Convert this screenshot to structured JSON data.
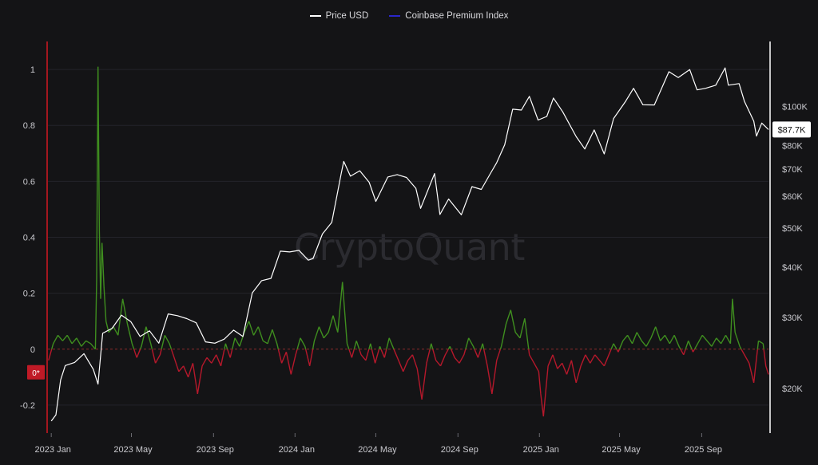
{
  "legend": {
    "items": [
      {
        "label": "Price USD",
        "color": "#ffffff"
      },
      {
        "label": "Coinbase Premium Index",
        "color": "#2a26c9"
      }
    ]
  },
  "watermark": "CryptoQuant",
  "price_badge": "$87.7K",
  "zero_badge": "0*",
  "colors": {
    "positive": "#3f8e1f",
    "negative": "#b5182b",
    "price": "#ffffff",
    "grid": "#23232a",
    "left_axis_line": "#a3171f",
    "right_axis_line": "#ffffff"
  },
  "chart_data": {
    "type": "line",
    "x_range": [
      "2022-12-27",
      "2025-12-10"
    ],
    "x_ticks": [
      {
        "date": "2023-01-01",
        "label": "2023 Jan"
      },
      {
        "date": "2023-05-01",
        "label": "2023 May"
      },
      {
        "date": "2023-09-01",
        "label": "2023 Sep"
      },
      {
        "date": "2024-01-01",
        "label": "2024 Jan"
      },
      {
        "date": "2024-05-01",
        "label": "2024 May"
      },
      {
        "date": "2024-09-01",
        "label": "2024 Sep"
      },
      {
        "date": "2025-01-01",
        "label": "2025 Jan"
      },
      {
        "date": "2025-05-01",
        "label": "2025 May"
      },
      {
        "date": "2025-09-01",
        "label": "2025 Sep"
      }
    ],
    "left_axis": {
      "ylim": [
        -0.3,
        1.1
      ],
      "ticks": [
        -0.2,
        0,
        0.2,
        0.4,
        0.6,
        0.8,
        1
      ],
      "tick_labels": [
        "-0.2",
        "0",
        "0.2",
        "0.4",
        "0.6",
        "0.8",
        "1"
      ]
    },
    "right_axis": {
      "scale": "log",
      "ylim": [
        15500,
        145000
      ],
      "ticks": [
        20000,
        30000,
        40000,
        50000,
        60000,
        70000,
        80000,
        100000
      ],
      "tick_labels": [
        "$20K",
        "$30K",
        "$40K",
        "$50K",
        "$60K",
        "$70K",
        "$80K",
        "$100K"
      ]
    },
    "series": [
      {
        "name": "Price USD",
        "axis": "right",
        "points": [
          [
            "2023-01-01",
            16600
          ],
          [
            "2023-01-08",
            17200
          ],
          [
            "2023-01-15",
            21000
          ],
          [
            "2023-01-22",
            22800
          ],
          [
            "2023-02-05",
            23200
          ],
          [
            "2023-02-19",
            24400
          ],
          [
            "2023-03-05",
            22300
          ],
          [
            "2023-03-12",
            20500
          ],
          [
            "2023-03-19",
            27400
          ],
          [
            "2023-04-02",
            28200
          ],
          [
            "2023-04-16",
            30400
          ],
          [
            "2023-04-30",
            29300
          ],
          [
            "2023-05-14",
            26900
          ],
          [
            "2023-05-28",
            27800
          ],
          [
            "2023-06-11",
            25900
          ],
          [
            "2023-06-25",
            30600
          ],
          [
            "2023-07-09",
            30300
          ],
          [
            "2023-07-23",
            29800
          ],
          [
            "2023-08-06",
            29100
          ],
          [
            "2023-08-20",
            26100
          ],
          [
            "2023-09-03",
            25900
          ],
          [
            "2023-09-17",
            26500
          ],
          [
            "2023-10-01",
            27900
          ],
          [
            "2023-10-15",
            26900
          ],
          [
            "2023-10-29",
            34500
          ],
          [
            "2023-11-12",
            37000
          ],
          [
            "2023-11-26",
            37500
          ],
          [
            "2023-12-10",
            43800
          ],
          [
            "2023-12-24",
            43600
          ],
          [
            "2024-01-07",
            44000
          ],
          [
            "2024-01-21",
            41600
          ],
          [
            "2024-01-28",
            42000
          ],
          [
            "2024-02-11",
            48300
          ],
          [
            "2024-02-25",
            51600
          ],
          [
            "2024-03-10",
            68000
          ],
          [
            "2024-03-14",
            73100
          ],
          [
            "2024-03-24",
            67200
          ],
          [
            "2024-04-07",
            69300
          ],
          [
            "2024-04-21",
            64900
          ],
          [
            "2024-05-01",
            58200
          ],
          [
            "2024-05-19",
            66900
          ],
          [
            "2024-06-02",
            67800
          ],
          [
            "2024-06-16",
            66700
          ],
          [
            "2024-06-30",
            62700
          ],
          [
            "2024-07-07",
            55900
          ],
          [
            "2024-07-28",
            68200
          ],
          [
            "2024-08-05",
            54000
          ],
          [
            "2024-08-18",
            59000
          ],
          [
            "2024-09-06",
            53900
          ],
          [
            "2024-09-22",
            63300
          ],
          [
            "2024-10-06",
            62300
          ],
          [
            "2024-10-20",
            68400
          ],
          [
            "2024-10-29",
            72600
          ],
          [
            "2024-11-10",
            80400
          ],
          [
            "2024-11-22",
            98500
          ],
          [
            "2024-12-05",
            98000
          ],
          [
            "2024-12-17",
            106000
          ],
          [
            "2024-12-30",
            92600
          ],
          [
            "2025-01-12",
            94500
          ],
          [
            "2025-01-22",
            105000
          ],
          [
            "2025-02-05",
            97000
          ],
          [
            "2025-02-25",
            84300
          ],
          [
            "2025-03-10",
            78500
          ],
          [
            "2025-03-24",
            87500
          ],
          [
            "2025-04-08",
            76300
          ],
          [
            "2025-04-22",
            93400
          ],
          [
            "2025-05-10",
            103000
          ],
          [
            "2025-05-22",
            111000
          ],
          [
            "2025-06-05",
            101000
          ],
          [
            "2025-06-22",
            100900
          ],
          [
            "2025-07-14",
            122000
          ],
          [
            "2025-07-28",
            118000
          ],
          [
            "2025-08-14",
            123500
          ],
          [
            "2025-08-25",
            110000
          ],
          [
            "2025-09-07",
            111000
          ],
          [
            "2025-09-22",
            113000
          ],
          [
            "2025-10-06",
            124700
          ],
          [
            "2025-10-11",
            113000
          ],
          [
            "2025-10-27",
            114000
          ],
          [
            "2025-11-04",
            103000
          ],
          [
            "2025-11-18",
            92000
          ],
          [
            "2025-11-22",
            84500
          ],
          [
            "2025-11-30",
            91000
          ],
          [
            "2025-12-06",
            89000
          ],
          [
            "2025-12-10",
            87700
          ]
        ]
      },
      {
        "name": "Coinbase Premium Index",
        "axis": "left",
        "points": [
          [
            "2022-12-28",
            -0.04
          ],
          [
            "2023-01-04",
            0.02
          ],
          [
            "2023-01-11",
            0.05
          ],
          [
            "2023-01-18",
            0.03
          ],
          [
            "2023-01-25",
            0.05
          ],
          [
            "2023-02-01",
            0.02
          ],
          [
            "2023-02-08",
            0.04
          ],
          [
            "2023-02-15",
            0.01
          ],
          [
            "2023-02-22",
            0.03
          ],
          [
            "2023-03-01",
            0.02
          ],
          [
            "2023-03-08",
            0.0
          ],
          [
            "2023-03-10",
            0.25
          ],
          [
            "2023-03-12",
            1.01
          ],
          [
            "2023-03-14",
            0.42
          ],
          [
            "2023-03-16",
            0.18
          ],
          [
            "2023-03-18",
            0.38
          ],
          [
            "2023-03-21",
            0.22
          ],
          [
            "2023-03-24",
            0.1
          ],
          [
            "2023-03-28",
            0.06
          ],
          [
            "2023-04-04",
            0.08
          ],
          [
            "2023-04-11",
            0.05
          ],
          [
            "2023-04-18",
            0.18
          ],
          [
            "2023-04-25",
            0.09
          ],
          [
            "2023-05-02",
            0.02
          ],
          [
            "2023-05-09",
            -0.03
          ],
          [
            "2023-05-16",
            0.01
          ],
          [
            "2023-05-23",
            0.08
          ],
          [
            "2023-05-30",
            0.02
          ],
          [
            "2023-06-06",
            -0.05
          ],
          [
            "2023-06-13",
            -0.02
          ],
          [
            "2023-06-20",
            0.05
          ],
          [
            "2023-06-27",
            0.02
          ],
          [
            "2023-07-04",
            -0.03
          ],
          [
            "2023-07-11",
            -0.08
          ],
          [
            "2023-07-18",
            -0.06
          ],
          [
            "2023-07-25",
            -0.1
          ],
          [
            "2023-08-01",
            -0.05
          ],
          [
            "2023-08-08",
            -0.16
          ],
          [
            "2023-08-15",
            -0.06
          ],
          [
            "2023-08-22",
            -0.03
          ],
          [
            "2023-08-29",
            -0.05
          ],
          [
            "2023-09-05",
            -0.02
          ],
          [
            "2023-09-12",
            -0.06
          ],
          [
            "2023-09-19",
            0.02
          ],
          [
            "2023-09-26",
            -0.03
          ],
          [
            "2023-10-03",
            0.04
          ],
          [
            "2023-10-10",
            0.01
          ],
          [
            "2023-10-17",
            0.06
          ],
          [
            "2023-10-24",
            0.1
          ],
          [
            "2023-10-31",
            0.05
          ],
          [
            "2023-11-07",
            0.08
          ],
          [
            "2023-11-14",
            0.03
          ],
          [
            "2023-11-21",
            0.02
          ],
          [
            "2023-11-28",
            0.07
          ],
          [
            "2023-12-05",
            0.02
          ],
          [
            "2023-12-12",
            -0.05
          ],
          [
            "2023-12-19",
            -0.01
          ],
          [
            "2023-12-26",
            -0.09
          ],
          [
            "2024-01-02",
            -0.02
          ],
          [
            "2024-01-09",
            0.04
          ],
          [
            "2024-01-16",
            0.01
          ],
          [
            "2024-01-23",
            -0.06
          ],
          [
            "2024-01-30",
            0.03
          ],
          [
            "2024-02-06",
            0.08
          ],
          [
            "2024-02-13",
            0.04
          ],
          [
            "2024-02-20",
            0.06
          ],
          [
            "2024-02-27",
            0.12
          ],
          [
            "2024-03-05",
            0.06
          ],
          [
            "2024-03-12",
            0.24
          ],
          [
            "2024-03-19",
            0.02
          ],
          [
            "2024-03-26",
            -0.03
          ],
          [
            "2024-04-02",
            0.03
          ],
          [
            "2024-04-09",
            -0.02
          ],
          [
            "2024-04-16",
            -0.04
          ],
          [
            "2024-04-23",
            0.02
          ],
          [
            "2024-04-30",
            -0.05
          ],
          [
            "2024-05-07",
            0.01
          ],
          [
            "2024-05-14",
            -0.03
          ],
          [
            "2024-05-21",
            0.04
          ],
          [
            "2024-05-28",
            0.0
          ],
          [
            "2024-06-04",
            -0.04
          ],
          [
            "2024-06-11",
            -0.08
          ],
          [
            "2024-06-18",
            -0.04
          ],
          [
            "2024-06-25",
            -0.02
          ],
          [
            "2024-07-02",
            -0.07
          ],
          [
            "2024-07-09",
            -0.18
          ],
          [
            "2024-07-16",
            -0.05
          ],
          [
            "2024-07-23",
            0.02
          ],
          [
            "2024-07-30",
            -0.04
          ],
          [
            "2024-08-06",
            -0.06
          ],
          [
            "2024-08-13",
            -0.02
          ],
          [
            "2024-08-20",
            0.01
          ],
          [
            "2024-08-27",
            -0.03
          ],
          [
            "2024-09-03",
            -0.05
          ],
          [
            "2024-09-10",
            -0.02
          ],
          [
            "2024-09-17",
            0.04
          ],
          [
            "2024-09-24",
            0.01
          ],
          [
            "2024-10-01",
            -0.03
          ],
          [
            "2024-10-08",
            0.02
          ],
          [
            "2024-10-15",
            -0.06
          ],
          [
            "2024-10-22",
            -0.16
          ],
          [
            "2024-10-29",
            -0.04
          ],
          [
            "2024-11-05",
            0.01
          ],
          [
            "2024-11-12",
            0.09
          ],
          [
            "2024-11-19",
            0.14
          ],
          [
            "2024-11-26",
            0.06
          ],
          [
            "2024-12-03",
            0.04
          ],
          [
            "2024-12-10",
            0.11
          ],
          [
            "2024-12-17",
            -0.02
          ],
          [
            "2024-12-24",
            -0.05
          ],
          [
            "2024-12-31",
            -0.08
          ],
          [
            "2025-01-03",
            -0.16
          ],
          [
            "2025-01-07",
            -0.24
          ],
          [
            "2025-01-14",
            -0.06
          ],
          [
            "2025-01-21",
            -0.02
          ],
          [
            "2025-01-28",
            -0.07
          ],
          [
            "2025-02-04",
            -0.05
          ],
          [
            "2025-02-11",
            -0.09
          ],
          [
            "2025-02-18",
            -0.04
          ],
          [
            "2025-02-25",
            -0.12
          ],
          [
            "2025-03-04",
            -0.06
          ],
          [
            "2025-03-11",
            -0.02
          ],
          [
            "2025-03-18",
            -0.05
          ],
          [
            "2025-03-25",
            -0.02
          ],
          [
            "2025-04-01",
            -0.04
          ],
          [
            "2025-04-08",
            -0.06
          ],
          [
            "2025-04-15",
            -0.02
          ],
          [
            "2025-04-22",
            0.02
          ],
          [
            "2025-04-29",
            -0.01
          ],
          [
            "2025-05-06",
            0.03
          ],
          [
            "2025-05-13",
            0.05
          ],
          [
            "2025-05-20",
            0.02
          ],
          [
            "2025-05-27",
            0.06
          ],
          [
            "2025-06-03",
            0.03
          ],
          [
            "2025-06-10",
            0.01
          ],
          [
            "2025-06-17",
            0.04
          ],
          [
            "2025-06-24",
            0.08
          ],
          [
            "2025-07-01",
            0.03
          ],
          [
            "2025-07-08",
            0.05
          ],
          [
            "2025-07-15",
            0.02
          ],
          [
            "2025-07-22",
            0.05
          ],
          [
            "2025-07-29",
            0.01
          ],
          [
            "2025-08-05",
            -0.02
          ],
          [
            "2025-08-12",
            0.03
          ],
          [
            "2025-08-19",
            -0.01
          ],
          [
            "2025-08-26",
            0.02
          ],
          [
            "2025-09-02",
            0.05
          ],
          [
            "2025-09-09",
            0.03
          ],
          [
            "2025-09-16",
            0.01
          ],
          [
            "2025-09-23",
            0.04
          ],
          [
            "2025-09-30",
            0.02
          ],
          [
            "2025-10-07",
            0.05
          ],
          [
            "2025-10-14",
            0.02
          ],
          [
            "2025-10-17",
            0.18
          ],
          [
            "2025-10-21",
            0.06
          ],
          [
            "2025-10-28",
            0.01
          ],
          [
            "2025-11-04",
            -0.02
          ],
          [
            "2025-11-11",
            -0.05
          ],
          [
            "2025-11-18",
            -0.12
          ],
          [
            "2025-11-25",
            0.03
          ],
          [
            "2025-12-02",
            0.02
          ],
          [
            "2025-12-06",
            -0.06
          ],
          [
            "2025-12-10",
            -0.09
          ]
        ]
      }
    ]
  }
}
